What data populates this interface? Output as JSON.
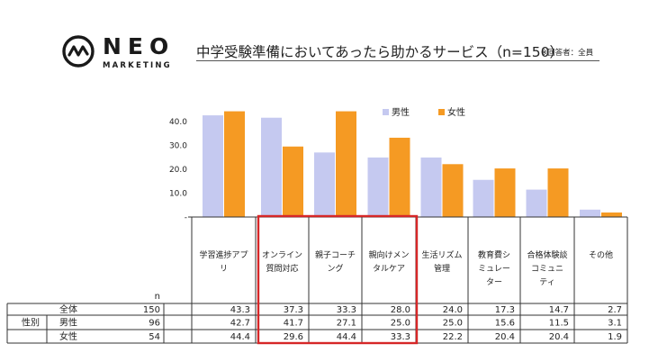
{
  "brand": {
    "word": "NEO",
    "sub": "MARKETING",
    "accent": "#1a1a1a"
  },
  "title": "中学受験準備においてあったら助かるサービス（n=150）",
  "note": "※回答者：全員",
  "chart_data": {
    "type": "bar",
    "categories": [
      [
        "学習進捗アプ",
        "リ"
      ],
      [
        "オンライン",
        "質問対応"
      ],
      [
        "親子コーチ",
        "ング"
      ],
      [
        "親向けメン",
        "タルケア"
      ],
      [
        "生活リズム",
        "管理"
      ],
      [
        "教育費シ",
        "ミュレー",
        "ター"
      ],
      [
        "合格体験談",
        "コミュニ",
        "ティ"
      ],
      [
        "その他"
      ]
    ],
    "series": [
      {
        "name": "男性",
        "color": "#c5c9f0",
        "values": [
          42.7,
          41.7,
          27.1,
          25.0,
          25.0,
          15.6,
          11.5,
          3.1
        ]
      },
      {
        "name": "女性",
        "color": "#f59a23",
        "values": [
          44.4,
          29.6,
          44.4,
          33.3,
          22.2,
          20.4,
          20.4,
          1.9
        ]
      }
    ],
    "ylim": [
      0,
      45
    ],
    "yticks": [
      "-",
      "10.0",
      "20.0",
      "30.0",
      "40.0"
    ],
    "legend": "top-right",
    "table": {
      "n_header": "n",
      "rows": [
        {
          "group": "",
          "label": "全体",
          "n": "150",
          "values": [
            "43.3",
            "37.3",
            "33.3",
            "28.0",
            "24.0",
            "17.3",
            "14.7",
            "2.7"
          ]
        },
        {
          "group": "性別",
          "label": "男性",
          "n": "96",
          "values": [
            "42.7",
            "41.7",
            "27.1",
            "25.0",
            "25.0",
            "15.6",
            "11.5",
            "3.1"
          ]
        },
        {
          "group": "",
          "label": "女性",
          "n": "54",
          "values": [
            "44.4",
            "29.6",
            "44.4",
            "33.3",
            "22.2",
            "20.4",
            "20.4",
            "1.9"
          ]
        }
      ]
    },
    "highlight_color": "#d62728"
  }
}
